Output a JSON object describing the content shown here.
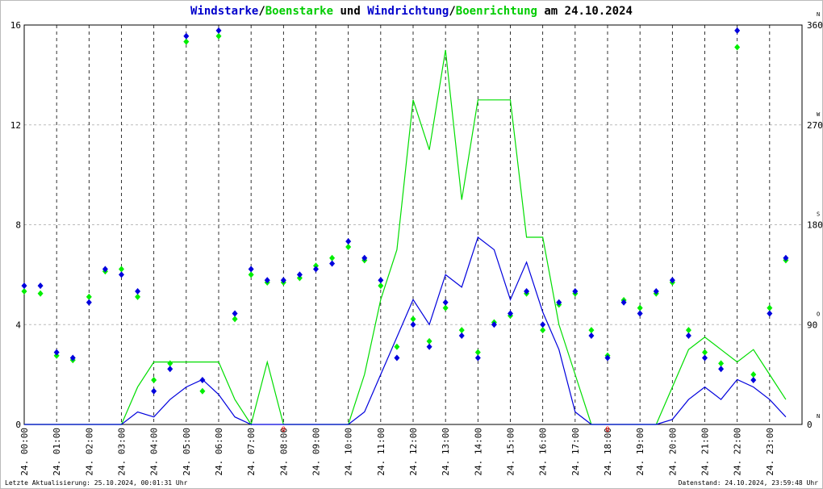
{
  "chart_data": {
    "type": "wind",
    "title_parts": [
      {
        "text": "Windstarke",
        "color": "#0000cc"
      },
      {
        "text": "/",
        "color": "#000000"
      },
      {
        "text": "Boenstarke",
        "color": "#00cc00"
      },
      {
        "text": " und ",
        "color": "#000000"
      },
      {
        "text": "Windrichtung",
        "color": "#0000cc"
      },
      {
        "text": "/",
        "color": "#000000"
      },
      {
        "text": "Boenrichtung",
        "color": "#00cc00"
      },
      {
        "text": " am 24.10.2024",
        "color": "#000000"
      }
    ],
    "footer_left": "Letzte Aktualisierung: 25.10.2024, 00:01:31 Uhr",
    "footer_right": "Datenstand: 24.10.2024, 23:59:48 Uhr",
    "xlim": [
      0,
      24
    ],
    "xticks": [
      {
        "value": 0,
        "label": "24. 00:00"
      },
      {
        "value": 1,
        "label": "24. 01:00"
      },
      {
        "value": 2,
        "label": "24. 02:00"
      },
      {
        "value": 3,
        "label": "24. 03:00"
      },
      {
        "value": 4,
        "label": "24. 04:00"
      },
      {
        "value": 5,
        "label": "24. 05:00"
      },
      {
        "value": 6,
        "label": "24. 06:00"
      },
      {
        "value": 7,
        "label": "24. 07:00"
      },
      {
        "value": 8,
        "label": "24. 08:00"
      },
      {
        "value": 9,
        "label": "24. 09:00"
      },
      {
        "value": 10,
        "label": "24. 10:00"
      },
      {
        "value": 11,
        "label": "24. 11:00"
      },
      {
        "value": 12,
        "label": "24. 12:00"
      },
      {
        "value": 13,
        "label": "24. 13:00"
      },
      {
        "value": 14,
        "label": "24. 14:00"
      },
      {
        "value": 15,
        "label": "24. 15:00"
      },
      {
        "value": 16,
        "label": "24. 16:00"
      },
      {
        "value": 17,
        "label": "24. 17:00"
      },
      {
        "value": 18,
        "label": "24. 18:00"
      },
      {
        "value": 19,
        "label": "24. 19:00"
      },
      {
        "value": 20,
        "label": "24. 20:00"
      },
      {
        "value": 21,
        "label": "24. 21:00"
      },
      {
        "value": 22,
        "label": "24. 22:00"
      },
      {
        "value": 23,
        "label": "24. 23:00"
      }
    ],
    "ylim": [
      0,
      16
    ],
    "yticks": [
      0,
      4,
      8,
      12,
      16
    ],
    "y2lim": [
      0,
      360
    ],
    "y2ticks": [
      0,
      90,
      180,
      270,
      360
    ],
    "y2tick_letters": [
      "N",
      "O",
      "S",
      "W",
      "N"
    ],
    "grid": true,
    "annotations": [
      {
        "x": 8,
        "label": "0",
        "color": "#ff0000"
      },
      {
        "x": 18,
        "label": "0",
        "color": "#ff0000"
      }
    ],
    "x": [
      0,
      0.5,
      1,
      1.5,
      2,
      2.5,
      3,
      3.5,
      4,
      4.5,
      5,
      5.5,
      6,
      6.5,
      7,
      7.5,
      8,
      8.5,
      9,
      9.5,
      10,
      10.5,
      11,
      11.5,
      12,
      12.5,
      13,
      13.5,
      14,
      14.5,
      15,
      15.5,
      16,
      16.5,
      17,
      17.5,
      18,
      18.5,
      19,
      19.5,
      20,
      20.5,
      21,
      21.5,
      22,
      22.5,
      23,
      23.5
    ],
    "series": [
      {
        "name": "Boenstarke",
        "color": "#00dd00",
        "kind": "line",
        "values": [
          0,
          0,
          0,
          0,
          0,
          0,
          0,
          1.5,
          2.5,
          2.5,
          2.5,
          2.5,
          2.5,
          1,
          0,
          2.5,
          0,
          0,
          0,
          0,
          0,
          2,
          5,
          7,
          13,
          11,
          15,
          9,
          13,
          13,
          13,
          7.5,
          7.5,
          4,
          2,
          0,
          0,
          0,
          0,
          0,
          1.5,
          3,
          3.5,
          3,
          2.5,
          3,
          2,
          1
        ]
      },
      {
        "name": "Windstarke",
        "color": "#0000dd",
        "kind": "line",
        "values": [
          0,
          0,
          0,
          0,
          0,
          0,
          0,
          0.5,
          0.3,
          1,
          1.5,
          1.8,
          1.2,
          0.3,
          0,
          0,
          0,
          0,
          0,
          0,
          0,
          0.5,
          2,
          3.5,
          5,
          4,
          6,
          5.5,
          7.5,
          7,
          5,
          6.5,
          4.5,
          3,
          0.5,
          0,
          0,
          0,
          0,
          0,
          0.2,
          1,
          1.5,
          1,
          1.8,
          1.5,
          1,
          0.3
        ]
      },
      {
        "name": "Boenrichtung",
        "color": "#00ee00",
        "kind": "dots",
        "axis": "y2",
        "values": [
          120,
          118,
          62,
          58,
          115,
          138,
          140,
          115,
          40,
          55,
          345,
          30,
          350,
          95,
          135,
          128,
          128,
          132,
          143,
          150,
          160,
          148,
          125,
          70,
          95,
          75,
          105,
          85,
          65,
          92,
          98,
          118,
          85,
          108,
          118,
          85,
          62,
          112,
          105,
          118,
          128,
          85,
          65,
          55,
          340,
          45,
          105,
          148
        ]
      },
      {
        "name": "Windrichtung",
        "color": "#0000dd",
        "kind": "dots",
        "axis": "y2",
        "values": [
          125,
          125,
          65,
          60,
          110,
          140,
          135,
          120,
          30,
          50,
          350,
          40,
          355,
          100,
          140,
          130,
          130,
          135,
          140,
          145,
          165,
          150,
          130,
          60,
          90,
          70,
          110,
          80,
          60,
          90,
          100,
          120,
          90,
          110,
          120,
          80,
          60,
          110,
          100,
          120,
          130,
          80,
          60,
          50,
          355,
          40,
          100,
          150
        ]
      }
    ]
  }
}
